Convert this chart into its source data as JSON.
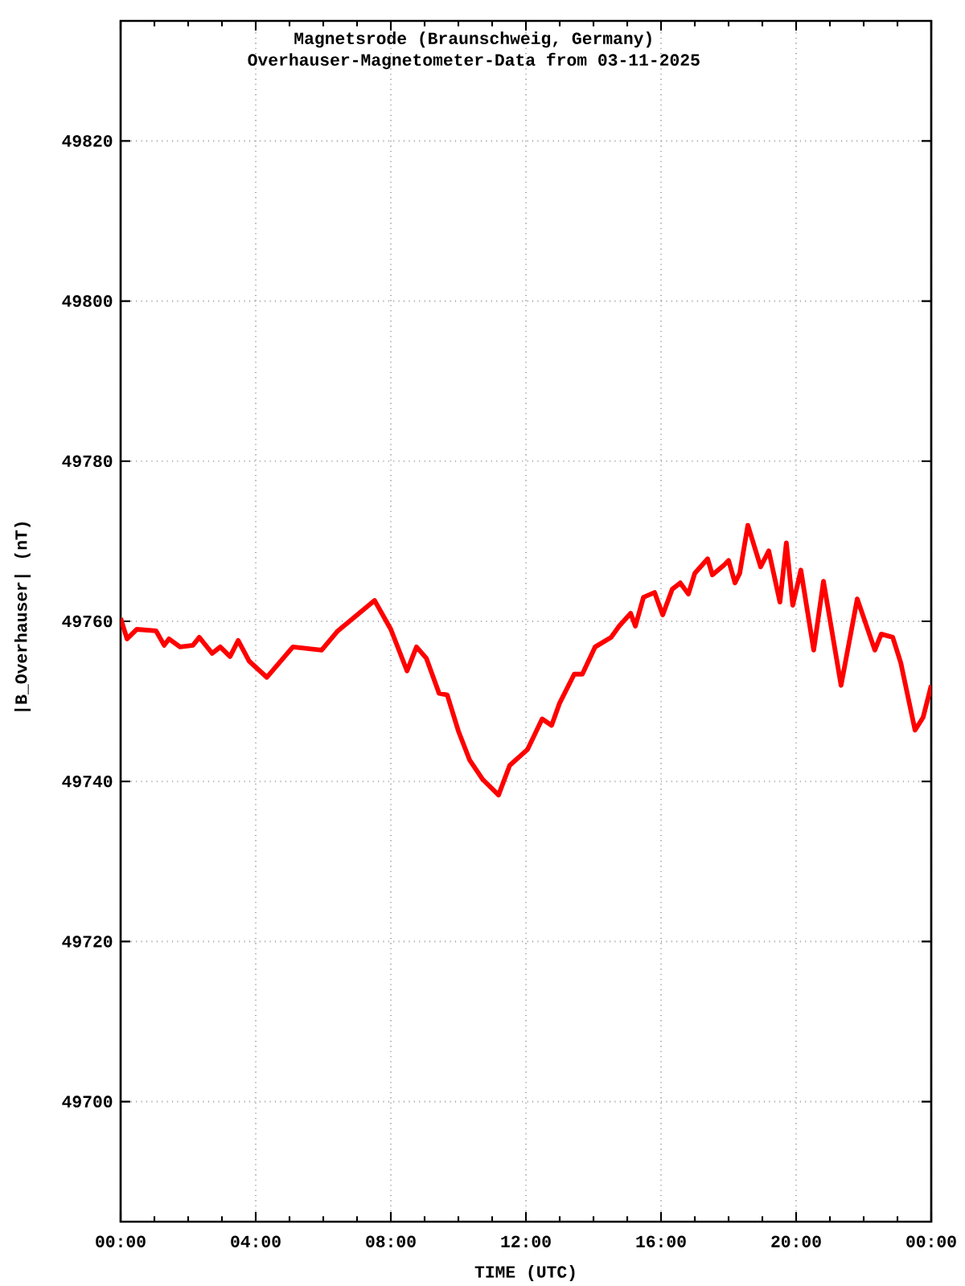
{
  "chart_data": {
    "type": "line",
    "title": "Magnetsrode (Braunschweig, Germany)",
    "subtitle": "Overhauser-Magnetometer-Data from 03-11-2025",
    "xlabel": "TIME (UTC)",
    "ylabel": "|B_Overhauser| (nT)",
    "xlim": [
      0,
      24
    ],
    "ylim": [
      49685,
      49835
    ],
    "xticks": [
      {
        "value": 0,
        "label": "00:00"
      },
      {
        "value": 4,
        "label": "04:00"
      },
      {
        "value": 8,
        "label": "08:00"
      },
      {
        "value": 12,
        "label": "12:00"
      },
      {
        "value": 16,
        "label": "16:00"
      },
      {
        "value": 20,
        "label": "20:00"
      },
      {
        "value": 24,
        "label": "00:00"
      }
    ],
    "yticks": [
      49700,
      49720,
      49740,
      49760,
      49780,
      49800,
      49820
    ],
    "grid": true,
    "marker": "none",
    "line_style": "solid",
    "series": [
      {
        "color": "#ff0000",
        "x": [
          0,
          0.19,
          0.48,
          1.05,
          1.29,
          1.43,
          1.76,
          2.14,
          2.33,
          2.71,
          2.95,
          3.24,
          3.48,
          3.81,
          4.33,
          5.1,
          5.95,
          6.43,
          7.52,
          8.0,
          8.48,
          8.76,
          9.05,
          9.43,
          9.67,
          10.0,
          10.33,
          10.71,
          11.19,
          11.52,
          12.05,
          12.48,
          12.76,
          13.0,
          13.43,
          13.67,
          14.05,
          14.52,
          14.76,
          15.1,
          15.24,
          15.48,
          15.81,
          16.05,
          16.33,
          16.57,
          16.81,
          17.0,
          17.38,
          17.52,
          17.86,
          18.0,
          18.19,
          18.33,
          18.57,
          18.95,
          19.19,
          19.52,
          19.71,
          19.9,
          20.14,
          20.52,
          20.81,
          21.33,
          21.81,
          22.33,
          22.52,
          22.86,
          23.1,
          23.52,
          23.76,
          24.0
        ],
        "values": [
          49760.4,
          49757.8,
          49759,
          49758.8,
          49757,
          49757.8,
          49756.8,
          49757,
          49758,
          49756,
          49756.8,
          49755.6,
          49757.6,
          49755,
          49753,
          49756.8,
          49756.4,
          49758.8,
          49762.6,
          49759,
          49753.8,
          49756.8,
          49755.4,
          49751,
          49750.8,
          49746.3,
          49742.7,
          49740.3,
          49738.3,
          49742,
          49744,
          49747.8,
          49747,
          49749.8,
          49753.4,
          49753.4,
          49756.8,
          49758,
          49759.4,
          49761,
          49759.4,
          49763,
          49763.6,
          49760.8,
          49764,
          49764.8,
          49763.4,
          49766,
          49767.8,
          49765.8,
          49767,
          49767.6,
          49764.8,
          49766,
          49772,
          49766.8,
          49768.8,
          49762.4,
          49769.8,
          49762,
          49766.4,
          49756.4,
          49765,
          49752,
          49762.8,
          49756.4,
          49758.4,
          49758,
          49754.8,
          49746.4,
          49748,
          49752
        ]
      }
    ]
  }
}
